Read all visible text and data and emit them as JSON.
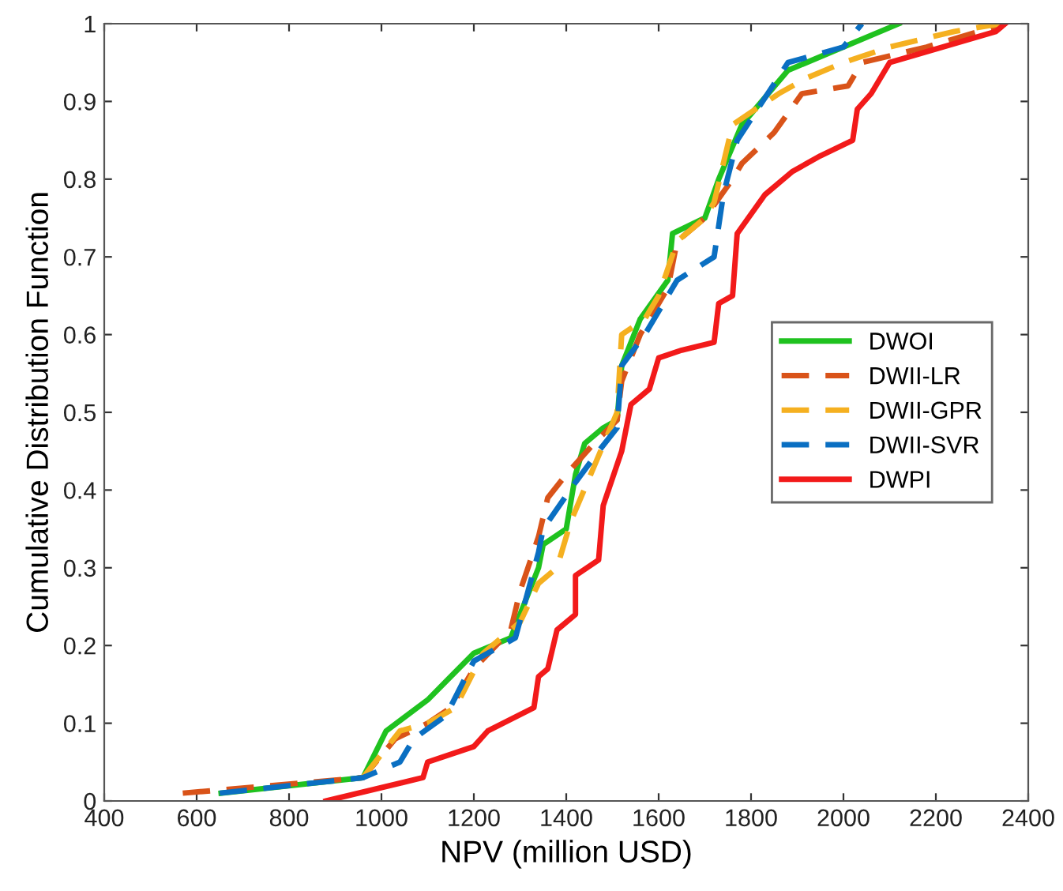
{
  "chart_data": {
    "type": "line",
    "xlabel": "NPV (million USD)",
    "ylabel": "Cumulative Distribution Function",
    "xlim": [
      400,
      2400
    ],
    "xticks": [
      400,
      600,
      800,
      1000,
      1200,
      1400,
      1600,
      1800,
      2000,
      2200,
      2400
    ],
    "ylim": [
      0,
      1
    ],
    "yticks": [
      0,
      0.1,
      0.2,
      0.3,
      0.4,
      0.5,
      0.6,
      0.7,
      0.8,
      0.9,
      1
    ],
    "grid": false,
    "legend": "right",
    "series": [
      {
        "name": "DWOI",
        "color": "#1fc21f",
        "line_style": "solid",
        "x": [
          653,
          960,
          1010,
          1100,
          1150,
          1200,
          1280,
          1300,
          1340,
          1350,
          1400,
          1420,
          1440,
          1480,
          1510,
          1520,
          1560,
          1620,
          1630,
          1700,
          1730,
          1780,
          1880,
          2000,
          2120
        ],
        "values": [
          0.01,
          0.03,
          0.09,
          0.13,
          0.16,
          0.19,
          0.21,
          0.24,
          0.3,
          0.33,
          0.35,
          0.42,
          0.46,
          0.48,
          0.49,
          0.56,
          0.62,
          0.67,
          0.73,
          0.75,
          0.8,
          0.87,
          0.94,
          0.97,
          1.0
        ]
      },
      {
        "name": "DWII-LR",
        "color": "#d95319",
        "line_style": "dashed",
        "x": [
          570,
          960,
          1030,
          1100,
          1150,
          1200,
          1280,
          1300,
          1340,
          1360,
          1400,
          1460,
          1510,
          1520,
          1560,
          1620,
          1640,
          1700,
          1760,
          1780,
          1850,
          1910,
          2010,
          2040,
          2180,
          2350
        ],
        "values": [
          0.01,
          0.03,
          0.08,
          0.1,
          0.12,
          0.17,
          0.22,
          0.27,
          0.34,
          0.39,
          0.42,
          0.46,
          0.49,
          0.54,
          0.6,
          0.66,
          0.72,
          0.75,
          0.8,
          0.82,
          0.86,
          0.91,
          0.92,
          0.95,
          0.97,
          1.0
        ]
      },
      {
        "name": "DWII-GPR",
        "color": "#f5b020",
        "line_style": "dashed",
        "x": [
          960,
          1040,
          1100,
          1160,
          1220,
          1300,
          1340,
          1380,
          1410,
          1460,
          1510,
          1520,
          1570,
          1600,
          1640,
          1700,
          1720,
          1760,
          1860,
          1920,
          2000,
          2100,
          2240,
          2340
        ],
        "values": [
          0.03,
          0.09,
          0.1,
          0.12,
          0.19,
          0.23,
          0.28,
          0.3,
          0.36,
          0.43,
          0.5,
          0.6,
          0.62,
          0.65,
          0.72,
          0.75,
          0.77,
          0.87,
          0.91,
          0.93,
          0.95,
          0.97,
          0.99,
          1.0
        ]
      },
      {
        "name": "DWII-SVR",
        "color": "#0a6fc2",
        "line_style": "dashed",
        "x": [
          650,
          960,
          1040,
          1070,
          1140,
          1200,
          1290,
          1340,
          1350,
          1420,
          1470,
          1510,
          1520,
          1570,
          1610,
          1640,
          1720,
          1740,
          1770,
          1880,
          2000,
          2040
        ],
        "values": [
          0.01,
          0.03,
          0.05,
          0.08,
          0.11,
          0.18,
          0.21,
          0.32,
          0.35,
          0.41,
          0.45,
          0.48,
          0.56,
          0.6,
          0.64,
          0.67,
          0.7,
          0.78,
          0.85,
          0.95,
          0.97,
          1.0
        ]
      },
      {
        "name": "DWPI",
        "color": "#f21a1a",
        "line_style": "solid",
        "x": [
          880,
          1090,
          1100,
          1200,
          1230,
          1330,
          1340,
          1360,
          1380,
          1420,
          1420,
          1470,
          1480,
          1520,
          1540,
          1580,
          1600,
          1650,
          1720,
          1730,
          1760,
          1770,
          1830,
          1890,
          1950,
          2020,
          2030,
          2060,
          2100,
          2330,
          2350
        ],
        "values": [
          0.0,
          0.03,
          0.05,
          0.07,
          0.09,
          0.12,
          0.16,
          0.17,
          0.22,
          0.24,
          0.29,
          0.31,
          0.38,
          0.45,
          0.51,
          0.53,
          0.57,
          0.58,
          0.59,
          0.64,
          0.65,
          0.73,
          0.78,
          0.81,
          0.83,
          0.85,
          0.89,
          0.91,
          0.95,
          0.99,
          1.0
        ]
      }
    ]
  }
}
